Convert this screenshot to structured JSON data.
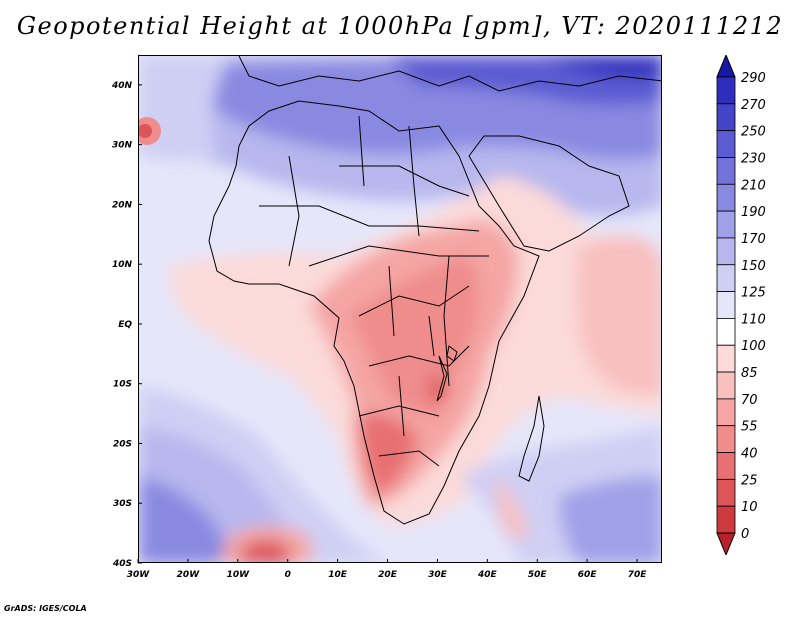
{
  "title": "Geopotential Height at 1000hPa [gpm], VT: 2020111212",
  "credit": "GrADS: IGES/COLA",
  "map": {
    "lon_range": [
      -30,
      75
    ],
    "lat_range": [
      -40,
      45
    ],
    "lon_ticks": [
      {
        "value": -30,
        "label": "30W"
      },
      {
        "value": -20,
        "label": "20W"
      },
      {
        "value": -10,
        "label": "10W"
      },
      {
        "value": 0,
        "label": "0"
      },
      {
        "value": 10,
        "label": "10E"
      },
      {
        "value": 20,
        "label": "20E"
      },
      {
        "value": 30,
        "label": "30E"
      },
      {
        "value": 40,
        "label": "40E"
      },
      {
        "value": 50,
        "label": "50E"
      },
      {
        "value": 60,
        "label": "60E"
      },
      {
        "value": 70,
        "label": "70E"
      }
    ],
    "lat_ticks": [
      {
        "value": 40,
        "label": "40N"
      },
      {
        "value": 30,
        "label": "30N"
      },
      {
        "value": 20,
        "label": "20N"
      },
      {
        "value": 10,
        "label": "10N"
      },
      {
        "value": 0,
        "label": "EQ"
      },
      {
        "value": -10,
        "label": "10S"
      },
      {
        "value": -20,
        "label": "20S"
      },
      {
        "value": -30,
        "label": "30S"
      },
      {
        "value": -40,
        "label": "40S"
      }
    ]
  },
  "colorbar": {
    "levels": [
      "0",
      "10",
      "25",
      "40",
      "55",
      "70",
      "85",
      "100",
      "110",
      "125",
      "150",
      "170",
      "190",
      "210",
      "230",
      "250",
      "270",
      "290"
    ],
    "colors": [
      "#b8202a",
      "#cc3a3e",
      "#dc5558",
      "#e77072",
      "#ef8c8c",
      "#f4a5a4",
      "#f8c0bf",
      "#fbdad9",
      "#ffffff",
      "#e6e6fa",
      "#cfcff4",
      "#b7b7ee",
      "#a0a0e8",
      "#8989e1",
      "#7272da",
      "#5b5bd2",
      "#4444c8",
      "#2e2ebd",
      "#1818a8"
    ]
  }
}
